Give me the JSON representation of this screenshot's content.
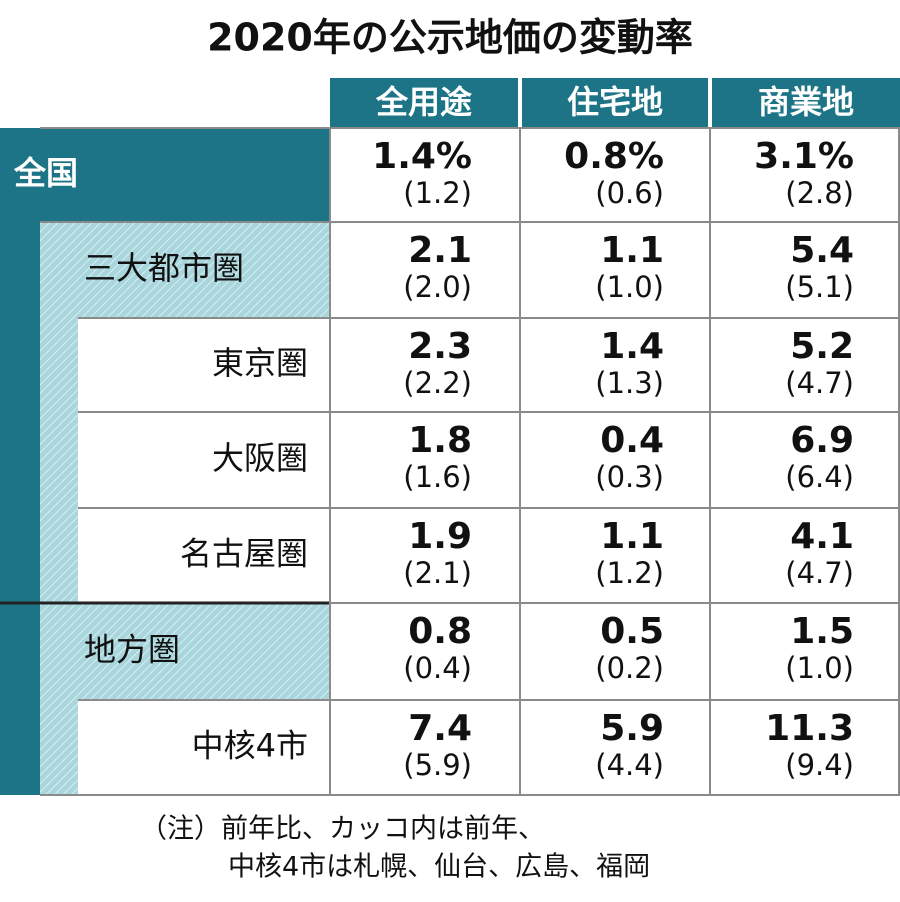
{
  "title": "2020年の公示地価の変動率",
  "columns": [
    "全用途",
    "住宅地",
    "商業地"
  ],
  "rows": [
    {
      "label": "全国",
      "values": [
        "1.4%",
        "0.8%",
        "3.1%"
      ],
      "previous": [
        "(1.2)",
        "(0.6)",
        "(2.8)"
      ]
    },
    {
      "label": "三大都市圏",
      "values": [
        "2.1",
        "1.1",
        "5.4"
      ],
      "previous": [
        "(2.0)",
        "(1.0)",
        "(5.1)"
      ]
    },
    {
      "label": "東京圏",
      "values": [
        "2.3",
        "1.4",
        "5.2"
      ],
      "previous": [
        "(2.2)",
        "(1.3)",
        "(4.7)"
      ]
    },
    {
      "label": "大阪圏",
      "values": [
        "1.8",
        "0.4",
        "6.9"
      ],
      "previous": [
        "(1.6)",
        "(0.3)",
        "(6.4)"
      ]
    },
    {
      "label": "名古屋圏",
      "values": [
        "1.9",
        "1.1",
        "4.1"
      ],
      "previous": [
        "(2.1)",
        "(1.2)",
        "(4.7)"
      ]
    },
    {
      "label": "地方圏",
      "values": [
        "0.8",
        "0.5",
        "1.5"
      ],
      "previous": [
        "(0.4)",
        "(0.2)",
        "(1.0)"
      ]
    },
    {
      "label": "中核4市",
      "values": [
        "7.4",
        "5.9",
        "11.3"
      ],
      "previous": [
        "(5.9)",
        "(4.4)",
        "(9.4)"
      ]
    }
  ],
  "note": [
    "（注）前年比、カッコ内は前年、",
    "中核4市は札幌、仙台、広島、福岡"
  ]
}
